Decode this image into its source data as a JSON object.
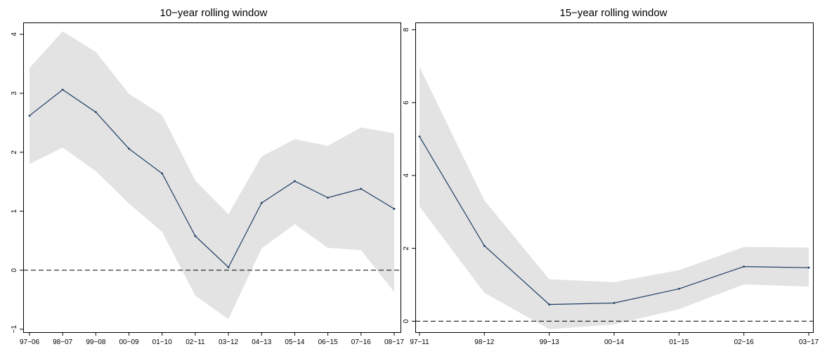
{
  "colors": {
    "line": "#1f3d63",
    "band": "#e3e3e3",
    "zero_line": "#000000"
  },
  "chart_data": [
    {
      "type": "line",
      "title": "10−year rolling window",
      "xlabel": "",
      "ylabel": "",
      "categories": [
        "97−06",
        "98−07",
        "99−08",
        "00−09",
        "01−10",
        "02−11",
        "03−12",
        "04−13",
        "05−14",
        "06−15",
        "07−16",
        "08−17"
      ],
      "series": [
        {
          "values": [
            2.62,
            3.06,
            2.68,
            2.06,
            1.64,
            0.58,
            0.05,
            1.14,
            1.51,
            1.23,
            1.38,
            1.04
          ],
          "lower": [
            1.8,
            2.08,
            1.68,
            1.13,
            0.65,
            -0.43,
            -0.83,
            0.37,
            0.78,
            0.38,
            0.34,
            -0.37
          ],
          "upper": [
            3.43,
            4.05,
            3.7,
            2.99,
            2.63,
            1.52,
            0.95,
            1.93,
            2.22,
            2.11,
            2.42,
            2.32
          ]
        }
      ],
      "reference_line": 0,
      "yticks": [
        -1,
        0,
        1,
        2,
        3,
        4
      ],
      "ytick_labels": [
        "−1",
        "0",
        "1",
        "2",
        "3",
        "4"
      ],
      "ylim": [
        -1.05,
        4.2
      ],
      "grid": false,
      "legend": "none"
    },
    {
      "type": "line",
      "title": "15−year rolling window",
      "xlabel": "",
      "ylabel": "",
      "categories": [
        "97−11",
        "98−12",
        "99−13",
        "00−14",
        "01−15",
        "02−16",
        "03−17"
      ],
      "series": [
        {
          "values": [
            5.07,
            2.07,
            0.46,
            0.5,
            0.89,
            1.5,
            1.47
          ],
          "lower": [
            3.15,
            0.78,
            -0.22,
            -0.09,
            0.33,
            1.01,
            0.95
          ],
          "upper": [
            6.98,
            3.32,
            1.15,
            1.07,
            1.4,
            2.04,
            2.02
          ]
        }
      ],
      "reference_line": 0,
      "yticks": [
        0,
        2,
        4,
        6,
        8
      ],
      "ytick_labels": [
        "0",
        "2",
        "4",
        "6",
        "8"
      ],
      "ylim": [
        -0.3,
        8.2
      ],
      "grid": false,
      "legend": "none"
    }
  ]
}
